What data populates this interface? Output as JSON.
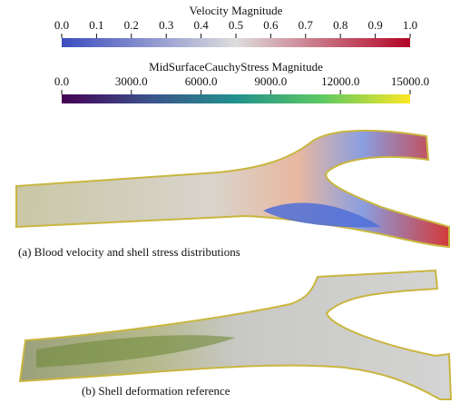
{
  "colorbars": [
    {
      "title": "Velocity Magnitude",
      "range": [
        0,
        1
      ],
      "colors": [
        "#3b4cc0",
        "#dddddd",
        "#b40426"
      ],
      "ticks": [
        {
          "value": 0,
          "label": "0.0"
        },
        {
          "value": 0.1,
          "label": "0.1"
        },
        {
          "value": 0.2,
          "label": "0.2"
        },
        {
          "value": 0.3,
          "label": "0.3"
        },
        {
          "value": 0.4,
          "label": "0.4"
        },
        {
          "value": 0.5,
          "label": "0.5"
        },
        {
          "value": 0.6,
          "label": "0.6"
        },
        {
          "value": 0.7,
          "label": "0.7"
        },
        {
          "value": 0.8,
          "label": "0.8"
        },
        {
          "value": 0.9,
          "label": "0.9"
        },
        {
          "value": 1,
          "label": "1.0"
        }
      ]
    },
    {
      "title": "MidSurfaceCauchyStress Magnitude",
      "range": [
        0,
        15000
      ],
      "colors": [
        "#440154",
        "#3b528b",
        "#21918c",
        "#5ec962",
        "#fde725"
      ],
      "ticks": [
        {
          "value": 0,
          "label": "0.0"
        },
        {
          "value": 3000,
          "label": "3000.0"
        },
        {
          "value": 6000,
          "label": "6000.0"
        },
        {
          "value": 9000,
          "label": "9000.0"
        },
        {
          "value": 12000,
          "label": "12000.0"
        },
        {
          "value": 15000,
          "label": "15000.0"
        }
      ]
    }
  ],
  "panels": [
    {
      "caption": "(a) Blood velocity and shell stress distributions"
    },
    {
      "caption": "(b) Shell deformation reference"
    }
  ]
}
